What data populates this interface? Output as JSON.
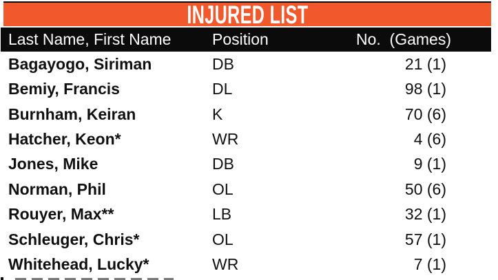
{
  "title_bar": {
    "label": "INJURED LIST"
  },
  "colors": {
    "accent": "#F1582B",
    "header_bg": "#0B0B0B",
    "body_text": "#101010",
    "header_text": "#FFFFFF"
  },
  "table": {
    "columns": {
      "name": "Last Name, First Name",
      "position": "Position",
      "games": "No.  (Games)"
    },
    "rows": [
      {
        "name": "Bagayogo, Siriman",
        "position": "DB",
        "no_games": "21 (1)"
      },
      {
        "name": "Bemiy, Francis",
        "position": "DL",
        "no_games": "98 (1)"
      },
      {
        "name": "Burnham, Keiran",
        "position": "K",
        "no_games": "70 (6)"
      },
      {
        "name": "Hatcher, Keon*",
        "position": "WR",
        "no_games": "4 (6)"
      },
      {
        "name": "Jones, Mike",
        "position": "DB",
        "no_games": "9 (1)"
      },
      {
        "name": "Norman, Phil",
        "position": "OL",
        "no_games": "50 (6)"
      },
      {
        "name": "Rouyer, Max**",
        "position": "LB",
        "no_games": "32 (1)"
      },
      {
        "name": "Schleuger, Chris*",
        "position": "OL",
        "no_games": "57 (1)"
      },
      {
        "name": "Whitehead, Lucky*",
        "position": "WR",
        "no_games": "7 (1)"
      }
    ]
  }
}
